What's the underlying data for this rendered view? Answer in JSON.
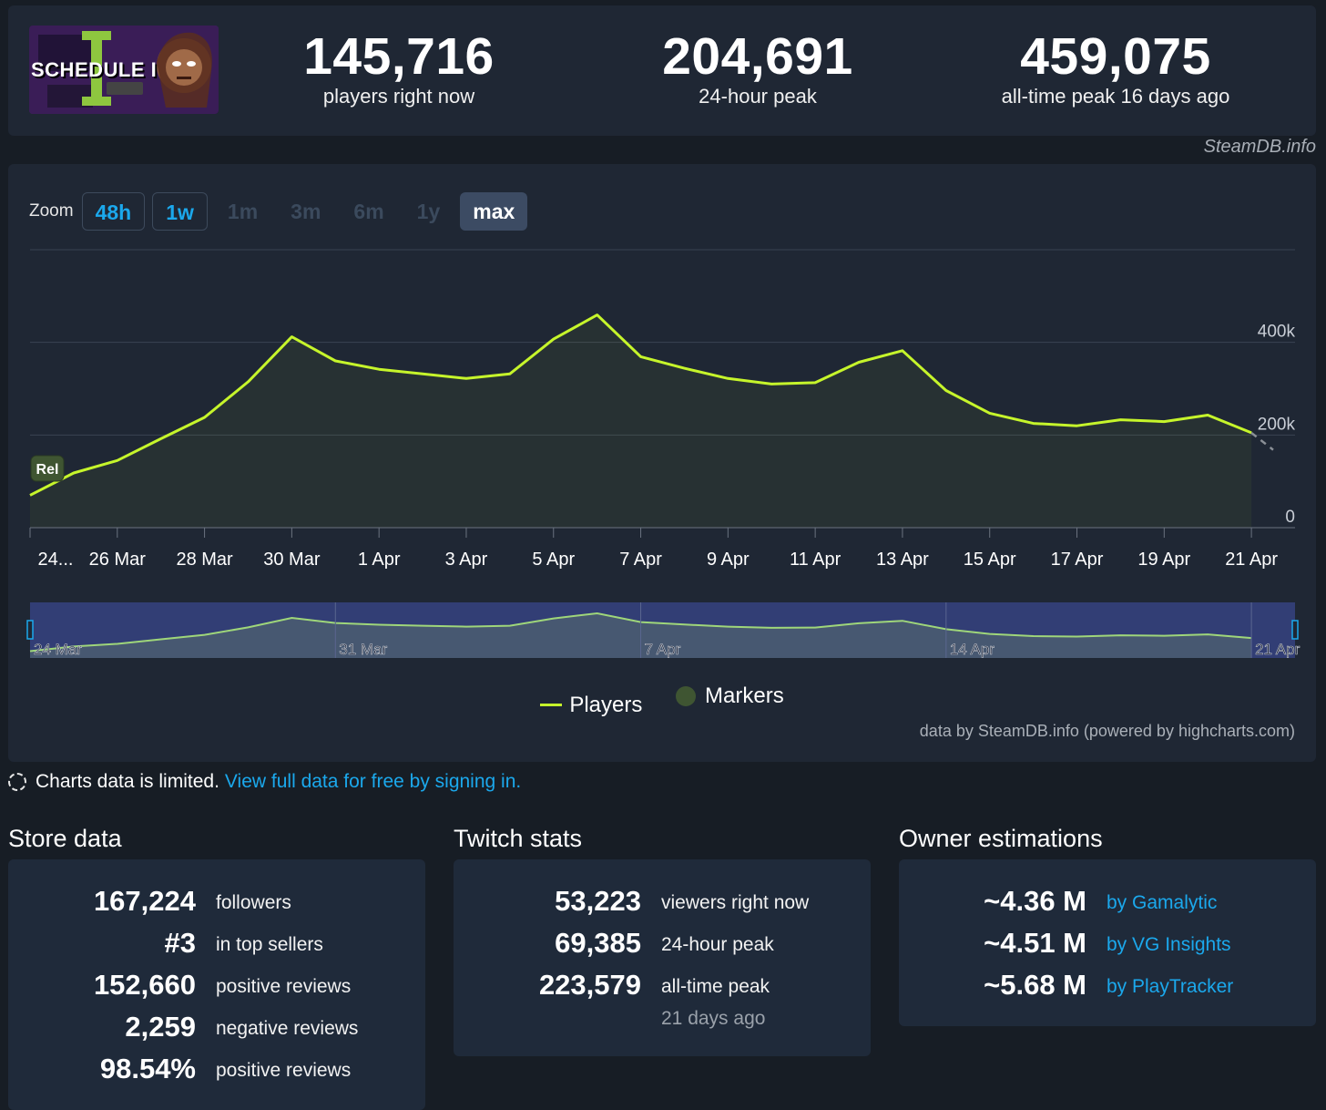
{
  "header": {
    "logo_text": "SCHEDULE I",
    "stats": [
      {
        "value": "145,716",
        "label": "players right now"
      },
      {
        "value": "204,691",
        "label": "24-hour peak"
      },
      {
        "value": "459,075",
        "label": "all-time peak 16 days ago"
      }
    ],
    "credit": "SteamDB.info"
  },
  "zoom": {
    "label": "Zoom",
    "buttons": [
      {
        "label": "48h",
        "state": "enabled"
      },
      {
        "label": "1w",
        "state": "enabled"
      },
      {
        "label": "1m",
        "state": "disabled"
      },
      {
        "label": "3m",
        "state": "disabled"
      },
      {
        "label": "6m",
        "state": "disabled"
      },
      {
        "label": "1y",
        "state": "disabled"
      },
      {
        "label": "max",
        "state": "selected"
      }
    ]
  },
  "chart_data": {
    "type": "line",
    "title": "",
    "xlabel": "",
    "ylabel": "",
    "ylim": [
      0,
      600000
    ],
    "yticks": [
      {
        "value": 0,
        "label": "0"
      },
      {
        "value": 200000,
        "label": "200k"
      },
      {
        "value": 400000,
        "label": "400k"
      }
    ],
    "xticks": [
      {
        "date": "2025-03-24",
        "label": "24..."
      },
      {
        "date": "2025-03-26",
        "label": "26 Mar"
      },
      {
        "date": "2025-03-28",
        "label": "28 Mar"
      },
      {
        "date": "2025-03-30",
        "label": "30 Mar"
      },
      {
        "date": "2025-04-01",
        "label": "1 Apr"
      },
      {
        "date": "2025-04-03",
        "label": "3 Apr"
      },
      {
        "date": "2025-04-05",
        "label": "5 Apr"
      },
      {
        "date": "2025-04-07",
        "label": "7 Apr"
      },
      {
        "date": "2025-04-09",
        "label": "9 Apr"
      },
      {
        "date": "2025-04-11",
        "label": "11 Apr"
      },
      {
        "date": "2025-04-13",
        "label": "13 Apr"
      },
      {
        "date": "2025-04-15",
        "label": "15 Apr"
      },
      {
        "date": "2025-04-17",
        "label": "17 Apr"
      },
      {
        "date": "2025-04-19",
        "label": "19 Apr"
      },
      {
        "date": "2025-04-21",
        "label": "21 Apr"
      }
    ],
    "xlim": [
      "2025-03-24",
      "2025-04-22"
    ],
    "grid": true,
    "legend_position": "bottom-center",
    "colors": {
      "line": "#c6f52b",
      "marker": "#3f5532",
      "forecast": "#8a8f96"
    },
    "series": [
      {
        "name": "Players",
        "points": [
          [
            "2025-03-24",
            70000
          ],
          [
            "2025-03-25",
            118000
          ],
          [
            "2025-03-26",
            145000
          ],
          [
            "2025-03-27",
            192000
          ],
          [
            "2025-03-28",
            238000
          ],
          [
            "2025-03-29",
            315000
          ],
          [
            "2025-03-30",
            412000
          ],
          [
            "2025-03-31",
            360000
          ],
          [
            "2025-04-01",
            342000
          ],
          [
            "2025-04-02",
            332000
          ],
          [
            "2025-04-03",
            322000
          ],
          [
            "2025-04-04",
            332000
          ],
          [
            "2025-04-05",
            407000
          ],
          [
            "2025-04-06",
            459075
          ],
          [
            "2025-04-07",
            369000
          ],
          [
            "2025-04-08",
            344000
          ],
          [
            "2025-04-09",
            322000
          ],
          [
            "2025-04-10",
            310000
          ],
          [
            "2025-04-11",
            313000
          ],
          [
            "2025-04-12",
            357000
          ],
          [
            "2025-04-13",
            382000
          ],
          [
            "2025-04-14",
            296000
          ],
          [
            "2025-04-15",
            247000
          ],
          [
            "2025-04-16",
            225000
          ],
          [
            "2025-04-17",
            220000
          ],
          [
            "2025-04-18",
            233000
          ],
          [
            "2025-04-19",
            229000
          ],
          [
            "2025-04-20",
            243000
          ],
          [
            "2025-04-21",
            204691
          ]
        ]
      }
    ],
    "forecast": [
      [
        "2025-04-21",
        204691
      ],
      [
        "2025-04-22",
        168000
      ]
    ],
    "markers": [
      {
        "date": "2025-03-24",
        "label": "Rel"
      }
    ],
    "navigator": {
      "labels": [
        {
          "date": "2025-03-24",
          "label": "24 Mar"
        },
        {
          "date": "2025-03-31",
          "label": "31 Mar"
        },
        {
          "date": "2025-04-07",
          "label": "7 Apr"
        },
        {
          "date": "2025-04-14",
          "label": "14 Apr"
        },
        {
          "date": "2025-04-21",
          "label": "21 Apr"
        }
      ]
    },
    "legend": [
      {
        "name": "Players"
      },
      {
        "name": "Markers"
      }
    ]
  },
  "chart_credit": "data by SteamDB.info (powered by highcharts.com)",
  "notice": {
    "text": "Charts data is limited.",
    "link": "View full data for free by signing in."
  },
  "store": {
    "title": "Store data",
    "rows": [
      {
        "value": "167,224",
        "label": "followers"
      },
      {
        "value": "#3",
        "label": "in top sellers"
      },
      {
        "value": "152,660",
        "label": "positive reviews"
      },
      {
        "value": "2,259",
        "label": "negative reviews"
      },
      {
        "value": "98.54%",
        "label": "positive reviews"
      }
    ]
  },
  "twitch": {
    "title": "Twitch stats",
    "rows": [
      {
        "value": "53,223",
        "label": "viewers right now"
      },
      {
        "value": "69,385",
        "label": "24-hour peak"
      },
      {
        "value": "223,579",
        "label": "all-time peak"
      }
    ],
    "sub": "21 days ago"
  },
  "owners": {
    "title": "Owner estimations",
    "rows": [
      {
        "value": "~4.36 M",
        "label": "by Gamalytic"
      },
      {
        "value": "~4.51 M",
        "label": "by VG Insights"
      },
      {
        "value": "~5.68 M",
        "label": "by PlayTracker"
      }
    ]
  }
}
